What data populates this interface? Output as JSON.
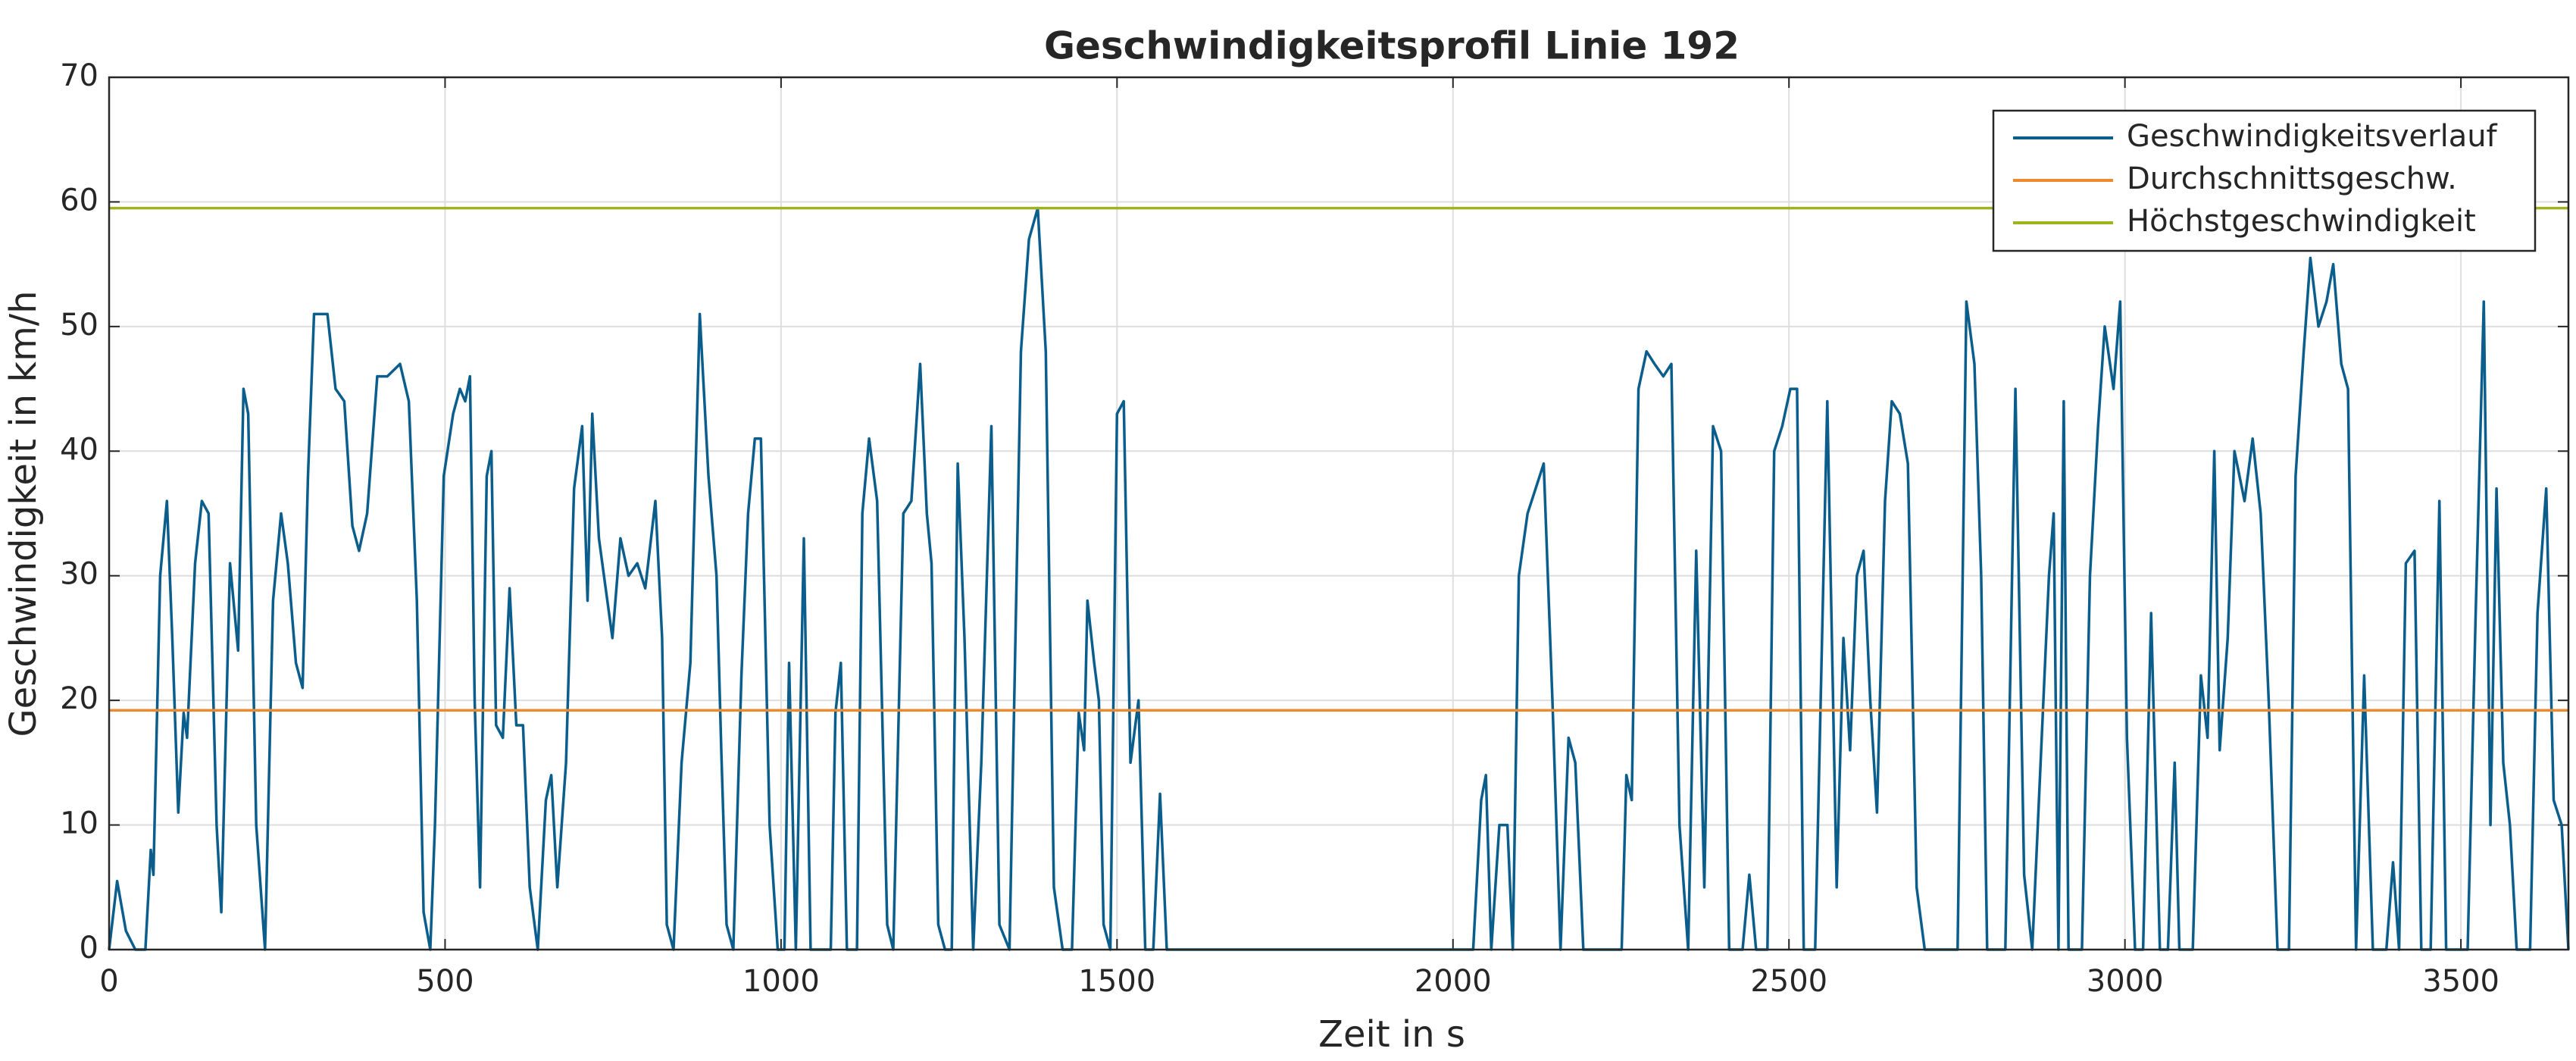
{
  "chart_data": {
    "type": "line",
    "title": "Geschwindigkeitsprofil Linie 192",
    "x_label": "Zeit in s",
    "y_label": "Geschwindigkeit in km/h",
    "xlim": [
      0,
      3660
    ],
    "ylim": [
      0,
      70
    ],
    "xticks": [
      0,
      500,
      1000,
      1500,
      2000,
      2500,
      3000,
      3500
    ],
    "yticks": [
      0,
      10,
      20,
      30,
      40,
      50,
      60,
      70
    ],
    "grid": true,
    "legend_position": "upper right",
    "series": [
      {
        "name": "Geschwindigkeitsverlauf",
        "color": "#0b5e8c",
        "x": [
          0,
          12,
          25,
          39,
          54,
          62,
          66,
          76,
          86,
          94,
          103,
          111,
          116,
          128,
          138,
          148,
          160,
          167,
          180,
          192,
          200,
          207,
          219,
          232,
          244,
          256,
          266,
          278,
          288,
          296,
          305,
          315,
          325,
          337,
          350,
          362,
          372,
          384,
          399,
          414,
          433,
          446,
          458,
          468,
          478,
          485,
          498,
          512,
          522,
          530,
          537,
          544,
          552,
          562,
          569,
          576,
          586,
          596,
          606,
          616,
          626,
          638,
          650,
          658,
          667,
          680,
          692,
          704,
          712,
          719,
          729,
          739,
          749,
          761,
          773,
          786,
          798,
          813,
          823,
          830,
          840,
          852,
          865,
          879,
          892,
          904,
          911,
          919,
          929,
          941,
          951,
          961,
          970,
          983,
          995,
          1005,
          1012,
          1022,
          1034,
          1044,
          1074,
          1081,
          1089,
          1098,
          1113,
          1121,
          1131,
          1143,
          1158,
          1167,
          1182,
          1194,
          1207,
          1217,
          1224,
          1234,
          1244,
          1254,
          1263,
          1273,
          1286,
          1298,
          1313,
          1325,
          1340,
          1357,
          1369,
          1382,
          1394,
          1406,
          1419,
          1433,
          1443,
          1451,
          1456,
          1466,
          1473,
          1480,
          1490,
          1500,
          1510,
          1520,
          1532,
          1542,
          1554,
          1564,
          1574,
          2030,
          2042,
          2049,
          2057,
          2069,
          2081,
          2089,
          2098,
          2111,
          2123,
          2135,
          2148,
          2160,
          2172,
          2182,
          2194,
          2251,
          2258,
          2266,
          2276,
          2288,
          2300,
          2313,
          2325,
          2337,
          2350,
          2362,
          2374,
          2387,
          2399,
          2411,
          2431,
          2441,
          2451,
          2468,
          2478,
          2490,
          2502,
          2512,
          2522,
          2539,
          2557,
          2571,
          2581,
          2591,
          2601,
          2611,
          2621,
          2631,
          2643,
          2653,
          2665,
          2677,
          2690,
          2702,
          2751,
          2764,
          2776,
          2786,
          2795,
          2822,
          2837,
          2850,
          2862,
          2887,
          2894,
          2901,
          2909,
          2916,
          2936,
          2948,
          2960,
          2970,
          2983,
          2993,
          3003,
          3015,
          3027,
          3039,
          3052,
          3064,
          3074,
          3081,
          3101,
          3113,
          3123,
          3133,
          3141,
          3153,
          3163,
          3178,
          3190,
          3202,
          3214,
          3227,
          3244,
          3254,
          3266,
          3276,
          3288,
          3300,
          3310,
          3322,
          3332,
          3344,
          3356,
          3369,
          3389,
          3399,
          3408,
          3418,
          3431,
          3441,
          3455,
          3468,
          3478,
          3510,
          3522,
          3534,
          3544,
          3553,
          3563,
          3573,
          3583,
          3603,
          3614,
          3627,
          3638,
          3650,
          3660
        ],
        "values": [
          0,
          5.5,
          1.5,
          0,
          0,
          8,
          6,
          30,
          36,
          25,
          11,
          19,
          17,
          31,
          36,
          35,
          10,
          3,
          31,
          24,
          45,
          43,
          10,
          0,
          28,
          35,
          31,
          23,
          21,
          38,
          51,
          51,
          51,
          45,
          44,
          34,
          32,
          35,
          46,
          46,
          47,
          44,
          28,
          3,
          0,
          10,
          38,
          43,
          45,
          44,
          46,
          20,
          5,
          38,
          40,
          18,
          17,
          29,
          18,
          18,
          5,
          0,
          12,
          14,
          5,
          15,
          37,
          42,
          28,
          43,
          33,
          29,
          25,
          33,
          30,
          31,
          29,
          36,
          25,
          2,
          0,
          15,
          23,
          51,
          38,
          30,
          16,
          2,
          0,
          22,
          35,
          41,
          41,
          10,
          0,
          0,
          23,
          0,
          33,
          0,
          0,
          19,
          23,
          0,
          0,
          35,
          41,
          36,
          2,
          0,
          35,
          36,
          47,
          35,
          31,
          2,
          0,
          0,
          39,
          25,
          0,
          15,
          42,
          2,
          0,
          48,
          57,
          59.5,
          48,
          5,
          0,
          0,
          19,
          16,
          28,
          23,
          20,
          2,
          0,
          43,
          44,
          15,
          20,
          0,
          0,
          12.5,
          0,
          0,
          12,
          14,
          0,
          10,
          10,
          0,
          30,
          35,
          37,
          39,
          20,
          0,
          17,
          15,
          0,
          0,
          14,
          12,
          45,
          48,
          47,
          46,
          47,
          10,
          0,
          32,
          5,
          42,
          40,
          0,
          0,
          6,
          0,
          0,
          40,
          42,
          45,
          45,
          0,
          0,
          44,
          5,
          25,
          16,
          30,
          32,
          20,
          11,
          36,
          44,
          43,
          39,
          5,
          0,
          0,
          52,
          47,
          30,
          0,
          0,
          45,
          6,
          0,
          30,
          35,
          0,
          44,
          0,
          0,
          30,
          42,
          50,
          45,
          52,
          17,
          0,
          0,
          27,
          0,
          0,
          15,
          0,
          0,
          22,
          17,
          40,
          16,
          25,
          40,
          36,
          41,
          35,
          20,
          0,
          0,
          38,
          48,
          55.5,
          50,
          52,
          55,
          47,
          45,
          0,
          22,
          0,
          0,
          7,
          0,
          31,
          32,
          0,
          0,
          36,
          0,
          0,
          27,
          52,
          10,
          37,
          15,
          10,
          0,
          0,
          27,
          37,
          12,
          10,
          0
        ]
      },
      {
        "name": "Durchschnittsgeschw.",
        "color": "#ee8a2e",
        "x": [
          0,
          3660
        ],
        "values": [
          19.2,
          19.2
        ]
      },
      {
        "name": "Höchstgeschwindigkeit",
        "color": "#9fb31f",
        "x": [
          0,
          3660
        ],
        "values": [
          59.5,
          59.5
        ]
      }
    ]
  }
}
